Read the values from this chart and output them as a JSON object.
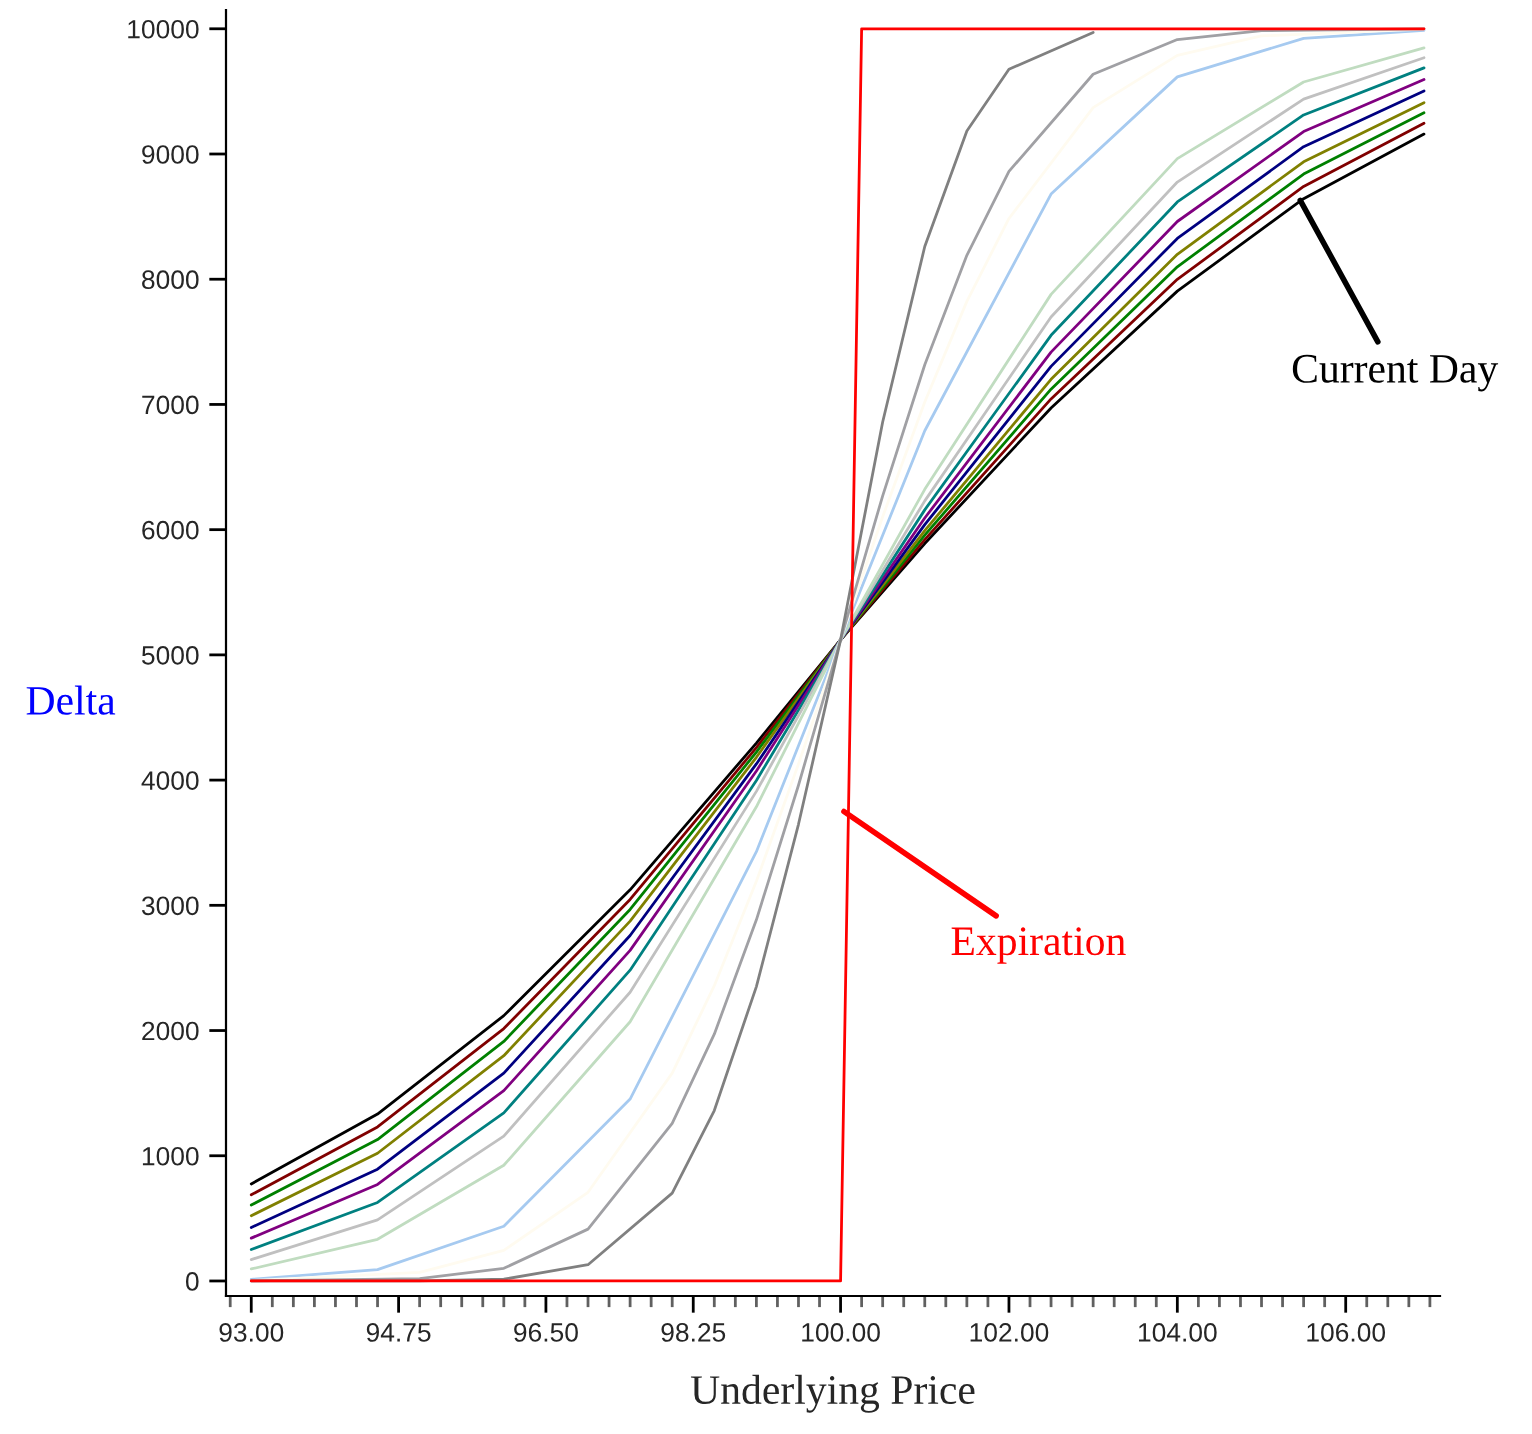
{
  "chart_data": {
    "type": "line",
    "xlabel": "Underlying Price",
    "ylabel": "Delta",
    "xlim": [
      92.7,
      107.12
    ],
    "ylim": [
      -120,
      10150
    ],
    "xticks": [
      {
        "value": 93,
        "label": "93.00"
      },
      {
        "value": 94.75,
        "label": "94.75"
      },
      {
        "value": 96.5,
        "label": "96.50"
      },
      {
        "value": 98.25,
        "label": "98.25"
      },
      {
        "value": 100,
        "label": "100.00"
      },
      {
        "value": 102,
        "label": "102.00"
      },
      {
        "value": 104,
        "label": "104.00"
      },
      {
        "value": 106,
        "label": "106.00"
      }
    ],
    "yticks": [
      0,
      1000,
      2000,
      3000,
      4000,
      5000,
      6000,
      7000,
      8000,
      9000,
      10000
    ],
    "grid": false,
    "legend": false,
    "series": [
      {
        "color": "#000000",
        "x": [
          93,
          94.5,
          96,
          97.5,
          99,
          100,
          101,
          102.5,
          104,
          105.5,
          106.93
        ],
        "values": [
          775,
          1333,
          2119,
          3124,
          4296,
          5120,
          5889,
          6972,
          7905,
          8643,
          9159
        ]
      },
      {
        "color": "#800000",
        "x": [
          93,
          94.5,
          96,
          97.5,
          99,
          100,
          101,
          102.5,
          104,
          105.5,
          106.93
        ],
        "values": [
          688,
          1230,
          2016,
          3047,
          4260,
          5120,
          5920,
          7044,
          7999,
          8741,
          9245
        ]
      },
      {
        "color": "#008000",
        "x": [
          93,
          94.5,
          96,
          97.5,
          99,
          100,
          101,
          102.5,
          104,
          105.5,
          106.93
        ],
        "values": [
          606,
          1129,
          1913,
          2967,
          4224,
          5120,
          5956,
          7122,
          8099,
          8840,
          9329
        ]
      },
      {
        "color": "#808000",
        "x": [
          93,
          94.5,
          96,
          97.5,
          99,
          100,
          101,
          102.5,
          104,
          105.5,
          106.93
        ],
        "values": [
          521,
          1020,
          1799,
          2874,
          4182,
          5120,
          5992,
          7201,
          8199,
          8938,
          9410
        ]
      },
      {
        "color": "#000080",
        "x": [
          93,
          94.5,
          96,
          97.5,
          99,
          100,
          101,
          102.5,
          104,
          105.5,
          106.93
        ],
        "values": [
          427,
          893,
          1660,
          2759,
          4129,
          5120,
          6040,
          7304,
          8326,
          9058,
          9504
        ]
      },
      {
        "color": "#800080",
        "x": [
          93,
          94.5,
          96,
          97.5,
          99,
          100,
          101,
          102.5,
          104,
          105.5,
          106.93
        ],
        "values": [
          342,
          771,
          1520,
          2640,
          4073,
          5120,
          6093,
          7418,
          8461,
          9179,
          9595
        ]
      },
      {
        "color": "#008080",
        "x": [
          93,
          94.5,
          96,
          97.5,
          99,
          100,
          101,
          102.5,
          104,
          105.5,
          106.93
        ],
        "values": [
          251,
          627,
          1343,
          2482,
          3997,
          5120,
          6158,
          7552,
          8617,
          9312,
          9688
        ]
      },
      {
        "color": "#c0c0c0",
        "x": [
          93,
          94.5,
          96,
          97.5,
          99,
          100,
          101,
          102.5,
          104,
          105.5,
          106.93
        ],
        "values": [
          171,
          488,
          1157,
          2306,
          3910,
          5120,
          6230,
          7698,
          8776,
          9438,
          9769
        ]
      },
      {
        "color": "#c0dcc0",
        "x": [
          93,
          94.5,
          96,
          97.5,
          99,
          100,
          101,
          102.5,
          104,
          105.5,
          106.93
        ],
        "values": [
          96,
          333,
          924,
          2070,
          3787,
          5120,
          6322,
          7879,
          8963,
          9575,
          9847
        ]
      },
      {
        "color": "#a6caf0",
        "x": [
          93,
          94.5,
          96,
          97.5,
          99,
          100,
          101,
          102.5,
          104,
          105.5,
          106.93
        ],
        "values": [
          13,
          91,
          437,
          1453,
          3428,
          5120,
          6790,
          8680,
          9616,
          9923,
          9988
        ]
      },
      {
        "color": "#fffbf0",
        "x": [
          93,
          95,
          96,
          97,
          98,
          98.5,
          99,
          99.5,
          100,
          100.5,
          101,
          101.5,
          102,
          103,
          104,
          105,
          106.93
        ],
        "values": [
          3,
          68,
          244,
          708,
          1660,
          2358,
          3192,
          4129,
          5120,
          6103,
          7019,
          7823,
          8485,
          9370,
          9788,
          9943,
          9998
        ]
      },
      {
        "color": "#a0a0a4",
        "x": [
          93,
          95,
          96,
          97,
          98,
          98.5,
          99,
          99.5,
          100,
          100.5,
          101,
          101.5,
          102,
          103,
          104,
          105,
          106.93
        ],
        "values": [
          0,
          18,
          101,
          414,
          1259,
          1971,
          2884,
          3959,
          5120,
          6270,
          7317,
          8191,
          8861,
          9637,
          9914,
          9985,
          10000
        ]
      },
      {
        "color": "#808080",
        "x": [
          93,
          95,
          96,
          97,
          98,
          98.5,
          99,
          99.5,
          100,
          100.5,
          101,
          101.5,
          102,
          103
        ],
        "values": [
          0,
          1,
          14,
          130,
          702,
          1361,
          2351,
          3647,
          5120,
          6860,
          8261,
          9184,
          9677,
          9971
        ]
      },
      {
        "color": "#ff0000",
        "x": [
          93,
          100,
          100.25,
          106.93
        ],
        "values": [
          0,
          0,
          10000,
          10000
        ]
      }
    ],
    "annotations": [
      {
        "text": "Current Day",
        "x": 105.46,
        "y": 8630
      },
      {
        "text": "Expiration",
        "x": 100.04,
        "y": 3749
      }
    ]
  }
}
